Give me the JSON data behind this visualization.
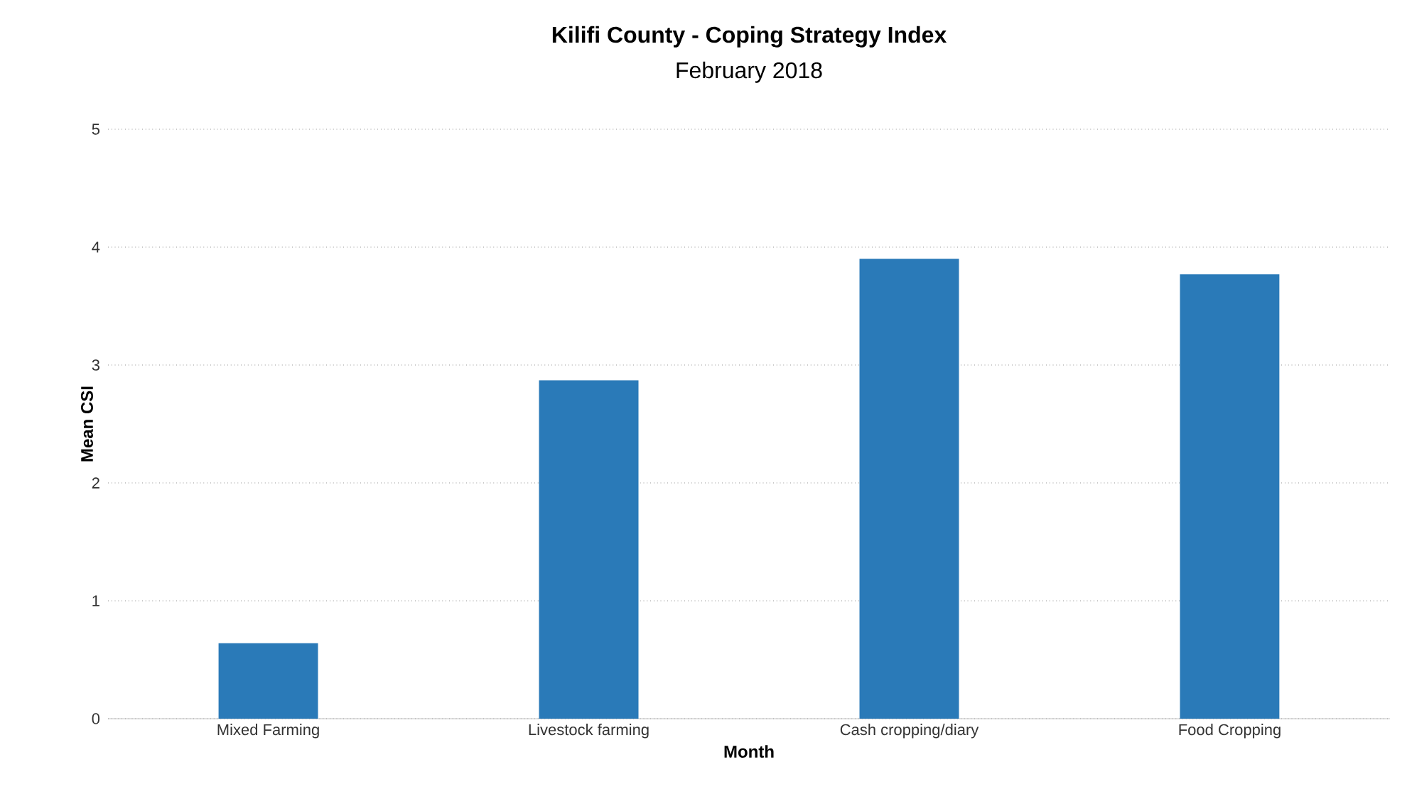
{
  "chart_data": {
    "type": "bar",
    "title": "Kilifi County - Coping Strategy Index",
    "subtitle": "February 2018",
    "xlabel": "Month",
    "ylabel": "Mean CSI",
    "categories": [
      "Mixed Farming",
      "Livestock farming",
      "Cash cropping/diary",
      "Food Cropping"
    ],
    "values": [
      0.64,
      2.87,
      3.9,
      3.77
    ],
    "color": "#2a7ab8",
    "ylim": [
      0,
      5
    ],
    "yticks": [
      0,
      1,
      2,
      3,
      4,
      5
    ],
    "grid": "y"
  }
}
